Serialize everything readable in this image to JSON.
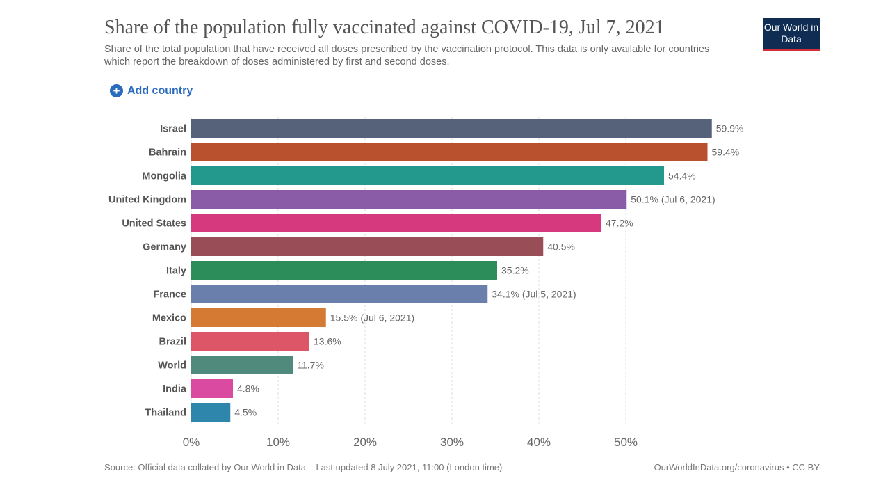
{
  "header": {
    "title": "Share of the population fully vaccinated against COVID-19, Jul 7, 2021",
    "subtitle": "Share of the total population that have received all doses prescribed by the vaccination protocol. This data is only available for countries which report the breakdown of doses administered by first and second doses.",
    "logo": "Our World in Data",
    "add_country": "Add country"
  },
  "footer": {
    "source": "Source: Official data collated by Our World in Data – Last updated 8 July 2021, 11:00 (London time)",
    "url": "OurWorldInData.org/coronavirus • CC BY"
  },
  "chart_data": {
    "type": "bar",
    "orientation": "horizontal",
    "xlim": [
      0,
      60
    ],
    "grid": true,
    "xticks": [
      "0%",
      "10%",
      "20%",
      "30%",
      "40%",
      "50%"
    ],
    "xtick_values": [
      0,
      10,
      20,
      30,
      40,
      50
    ],
    "categories": [
      "Israel",
      "Bahrain",
      "Mongolia",
      "United Kingdom",
      "United States",
      "Germany",
      "Italy",
      "France",
      "Mexico",
      "Brazil",
      "World",
      "India",
      "Thailand"
    ],
    "values": [
      59.9,
      59.4,
      54.4,
      50.1,
      47.2,
      40.5,
      35.2,
      34.1,
      15.5,
      13.6,
      11.7,
      4.8,
      4.5
    ],
    "labels": [
      "59.9%",
      "59.4%",
      "54.4%",
      "50.1% (Jul 6, 2021)",
      "47.2%",
      "40.5%",
      "35.2%",
      "34.1% (Jul 5, 2021)",
      "15.5% (Jul 6, 2021)",
      "13.6%",
      "11.7%",
      "4.8%",
      "4.5%"
    ],
    "colors": [
      "#56627a",
      "#b9502e",
      "#23998e",
      "#8a5ba6",
      "#d6397d",
      "#994d57",
      "#2c8d5b",
      "#6a7fac",
      "#d47a33",
      "#dc5668",
      "#4f8a7d",
      "#d94aa0",
      "#2f86ac"
    ]
  }
}
